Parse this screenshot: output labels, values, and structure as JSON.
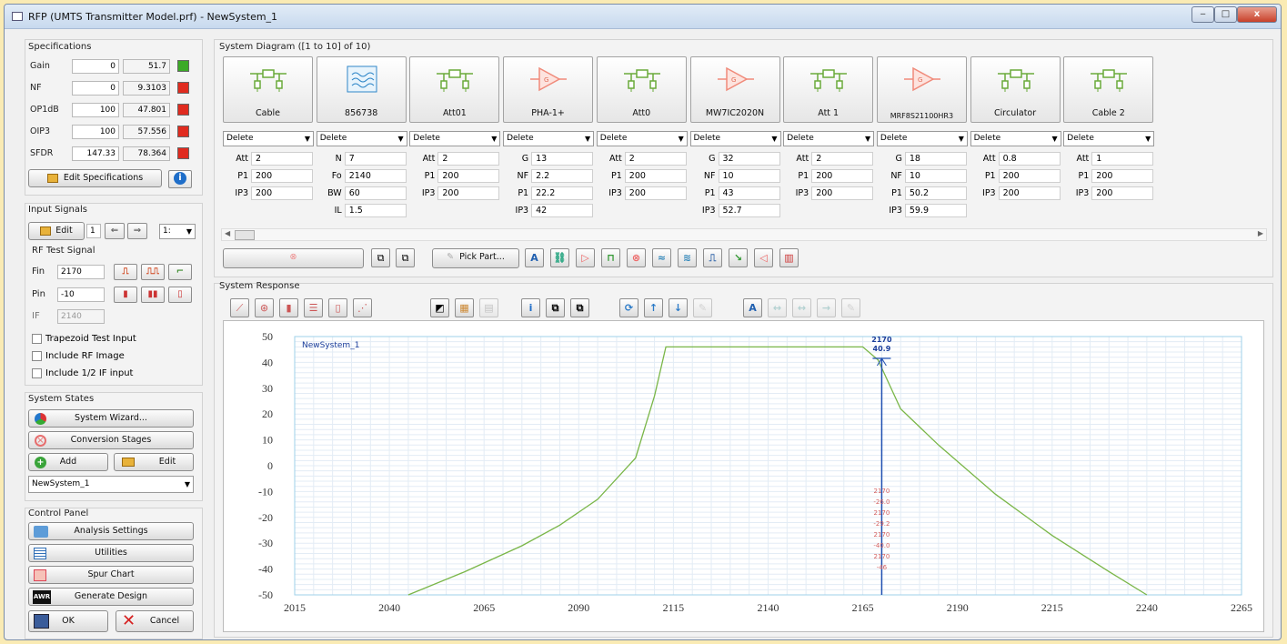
{
  "window": {
    "title": "RFP (UMTS Transmitter Model.prf) - NewSystem_1",
    "min": "‒",
    "max": "□",
    "close": "x"
  },
  "spec": {
    "title": "Specifications",
    "rows": [
      {
        "label": "Gain",
        "target": "0",
        "value": "51.7",
        "status": "#3caa28"
      },
      {
        "label": "NF",
        "target": "0",
        "value": "9.3103",
        "status": "#e02b1f"
      },
      {
        "label": "OP1dB",
        "target": "100",
        "value": "47.801",
        "status": "#e02b1f"
      },
      {
        "label": "OIP3",
        "target": "100",
        "value": "57.556",
        "status": "#e02b1f"
      },
      {
        "label": "SFDR",
        "target": "147.33",
        "value": "78.364",
        "status": "#e02b1f"
      }
    ],
    "edit_label": "Edit Specifications",
    "info": "i"
  },
  "input": {
    "title": "Input Signals",
    "edit_label": "Edit",
    "index": "1",
    "select": "1:",
    "rf_title": "RF Test Signal",
    "fin_label": "Fin",
    "fin": "2170",
    "pin_label": "Pin",
    "pin": "-10",
    "if_label": "IF",
    "if_val": "2140",
    "checks": [
      "Trapezoid Test Input",
      "Include RF Image",
      "Include 1/2 IF input"
    ]
  },
  "states": {
    "title": "System States",
    "wizard": "System Wizard...",
    "conv": "Conversion Stages",
    "add": "Add",
    "edit": "Edit",
    "system": "NewSystem_1"
  },
  "control": {
    "title": "Control Panel",
    "analysis": "Analysis Settings",
    "utilities": "Utilities",
    "spur": "Spur Chart",
    "generate": "Generate Design",
    "awr": "AWR",
    "ok": "OK",
    "cancel": "Cancel"
  },
  "diagram": {
    "title": "System Diagram ([1 to 10] of 10)",
    "delete": "Delete",
    "pick": "Pick Part...",
    "parts": [
      {
        "name": "Cable",
        "icon": "attenuator-icon",
        "params": [
          [
            "Att",
            "2"
          ],
          [
            "P1",
            "200"
          ],
          [
            "IP3",
            "200"
          ]
        ]
      },
      {
        "name": "856738",
        "icon": "filter-icon",
        "params": [
          [
            "N",
            "7"
          ],
          [
            "Fo",
            "2140"
          ],
          [
            "BW",
            "60"
          ],
          [
            "IL",
            "1.5"
          ]
        ]
      },
      {
        "name": "Att01",
        "icon": "attenuator-icon",
        "params": [
          [
            "Att",
            "2"
          ],
          [
            "P1",
            "200"
          ],
          [
            "IP3",
            "200"
          ]
        ]
      },
      {
        "name": "PHA-1+",
        "icon": "amplifier-icon",
        "params": [
          [
            "G",
            "13"
          ],
          [
            "NF",
            "2.2"
          ],
          [
            "P1",
            "22.2"
          ],
          [
            "IP3",
            "42"
          ]
        ]
      },
      {
        "name": "Att0",
        "icon": "attenuator-icon",
        "params": [
          [
            "Att",
            "2"
          ],
          [
            "P1",
            "200"
          ],
          [
            "IP3",
            "200"
          ]
        ]
      },
      {
        "name": "MW7IC2020N",
        "icon": "amplifier-icon",
        "params": [
          [
            "G",
            "32"
          ],
          [
            "NF",
            "10"
          ],
          [
            "P1",
            "43"
          ],
          [
            "IP3",
            "52.7"
          ]
        ]
      },
      {
        "name": "Att 1",
        "icon": "attenuator-icon",
        "params": [
          [
            "Att",
            "2"
          ],
          [
            "P1",
            "200"
          ],
          [
            "IP3",
            "200"
          ]
        ]
      },
      {
        "name": "MRF8S21100HR3",
        "icon": "amplifier-icon",
        "params": [
          [
            "G",
            "18"
          ],
          [
            "NF",
            "10"
          ],
          [
            "P1",
            "50.2"
          ],
          [
            "IP3",
            "59.9"
          ]
        ]
      },
      {
        "name": "Circulator",
        "icon": "attenuator-icon",
        "params": [
          [
            "Att",
            "0.8"
          ],
          [
            "P1",
            "200"
          ],
          [
            "IP3",
            "200"
          ]
        ]
      },
      {
        "name": "Cable 2",
        "icon": "attenuator-icon",
        "params": [
          [
            "Att",
            "1"
          ],
          [
            "P1",
            "200"
          ],
          [
            "IP3",
            "200"
          ]
        ]
      }
    ]
  },
  "response": {
    "title": "System Response"
  },
  "chart_data": {
    "type": "line",
    "title": "",
    "xlabel": "",
    "ylabel": "",
    "xlim": [
      2015,
      2265
    ],
    "ylim": [
      -50,
      50
    ],
    "xticks": [
      2015,
      2040,
      2065,
      2090,
      2115,
      2140,
      2165,
      2190,
      2215,
      2240,
      2265
    ],
    "yticks": [
      50,
      40,
      30,
      20,
      10,
      0,
      -10,
      -20,
      -30,
      -40,
      -50
    ],
    "series": [
      {
        "name": "NewSystem_1",
        "color": "#7ab648",
        "x": [
          2045,
          2060,
          2075,
          2085,
          2095,
          2105,
          2110,
          2113,
          2125,
          2140,
          2155,
          2165,
          2169,
          2175,
          2185,
          2200,
          2215,
          2230,
          2240
        ],
        "y": [
          -50,
          -41,
          -31,
          -23,
          -13,
          3,
          27,
          46,
          46,
          46,
          46,
          46,
          41,
          22,
          8,
          -11,
          -27,
          -41,
          -50
        ]
      }
    ],
    "marker": {
      "x": 2170,
      "label_x": "2170",
      "label_y": "40.9"
    },
    "spur_labels": [
      "2170",
      "-26.0",
      "2170",
      "-29.2",
      "2170",
      "-40.0",
      "2170",
      "-46"
    ],
    "grid": true,
    "legend": "top-left"
  }
}
